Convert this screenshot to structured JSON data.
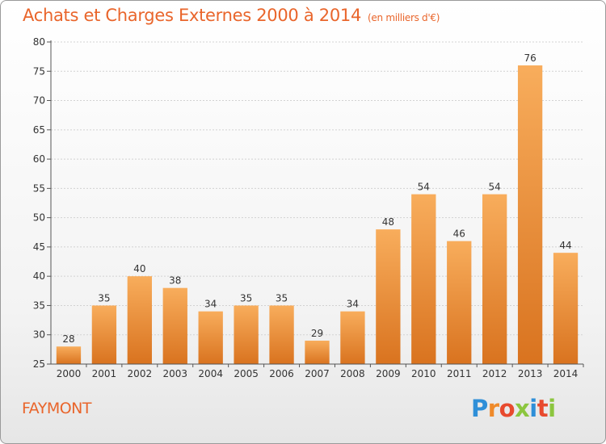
{
  "title": "Achats et Charges Externes 2000 à 2014",
  "unit": "(en milliers d'€)",
  "commune": "FAYMONT",
  "brand": "Proxiti",
  "colors": {
    "accent": "#e9652b",
    "bar_light": "#f8ad5c",
    "bar_dark": "#d9731f"
  },
  "chart_data": {
    "type": "bar",
    "title": "Achats et Charges Externes 2000 à 2014",
    "subtitle": "(en milliers d'€)",
    "categories": [
      "2000",
      "2001",
      "2002",
      "2003",
      "2004",
      "2005",
      "2006",
      "2007",
      "2008",
      "2009",
      "2010",
      "2011",
      "2012",
      "2013",
      "2014"
    ],
    "values": [
      28,
      35,
      40,
      38,
      34,
      35,
      35,
      29,
      34,
      48,
      54,
      46,
      54,
      76,
      44
    ],
    "ylim": [
      25,
      80
    ],
    "yticks": [
      25,
      30,
      35,
      40,
      45,
      50,
      55,
      60,
      65,
      70,
      75,
      80
    ],
    "grid": true,
    "data_labels": true
  }
}
